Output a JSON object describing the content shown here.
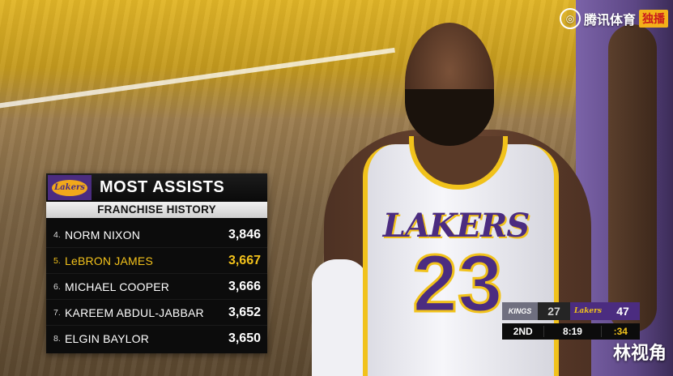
{
  "watermark": {
    "brand": "腾讯体育",
    "live_badge": "独播",
    "logo_icon": "tencent-sports-icon"
  },
  "corner_tag": "林视角",
  "panel": {
    "team_logo_text": "Lakers",
    "title": "MOST ASSISTS",
    "subtitle": "FRANCHISE HISTORY",
    "rows": [
      {
        "rank": "4.",
        "name": "NORM NIXON",
        "value": "3,846"
      },
      {
        "rank": "5.",
        "name": "LeBRON JAMES",
        "value": "3,667",
        "highlight": true
      },
      {
        "rank": "6.",
        "name": "MICHAEL COOPER",
        "value": "3,666"
      },
      {
        "rank": "7.",
        "name": "KAREEM ABDUL-JABBAR",
        "value": "3,652"
      },
      {
        "rank": "8.",
        "name": "ELGIN BAYLOR",
        "value": "3,650"
      }
    ],
    "highlight_color": "#f3c21b"
  },
  "jersey": {
    "team": "LAKERS",
    "number": "23"
  },
  "scorebug": {
    "away": {
      "logo_text": "KINGS",
      "score": "27"
    },
    "home": {
      "logo_text": "Lakers",
      "score": "47"
    },
    "period": "2ND",
    "clock": "8:19",
    "shot_clock": ":34"
  }
}
